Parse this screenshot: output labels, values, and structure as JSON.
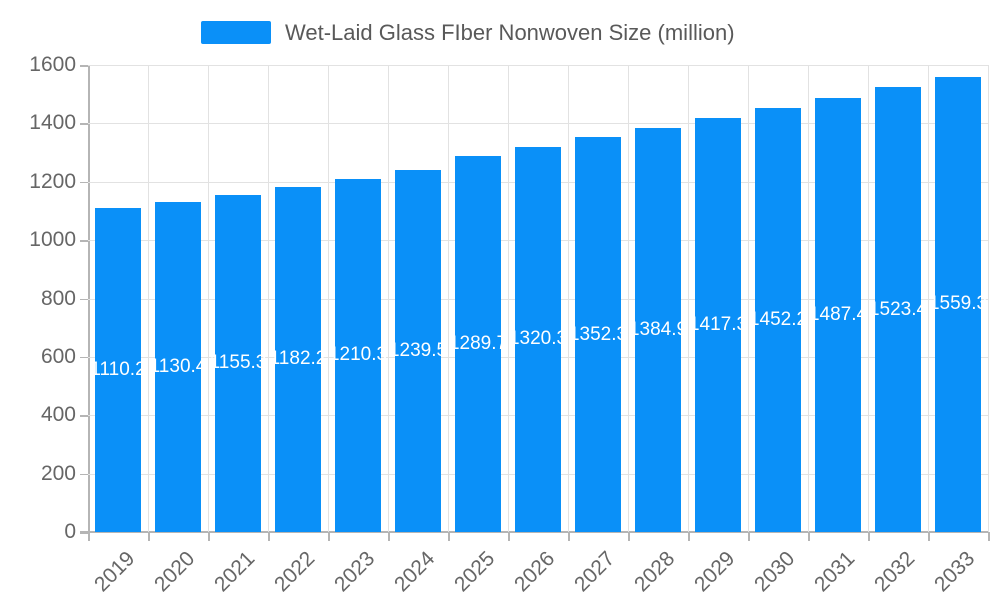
{
  "legend": {
    "label": "Wet-Laid Glass FIber Nonwoven Size (million)"
  },
  "colors": {
    "bar": "#0a90f8",
    "grid": "#e2e2e2",
    "axis": "#b5b5b5",
    "tick_text": "#666666",
    "legend_text": "#595959",
    "value_label": "#ffffff",
    "background": "#ffffff"
  },
  "chart_data": {
    "type": "bar",
    "title": "Wet-Laid Glass FIber Nonwoven Size (million)",
    "categories": [
      "2019",
      "2020",
      "2021",
      "2022",
      "2023",
      "2024",
      "2025",
      "2026",
      "2027",
      "2028",
      "2029",
      "2030",
      "2031",
      "2032",
      "2033"
    ],
    "values": [
      1110.2,
      1130.4,
      1155.3,
      1182.2,
      1210.3,
      1239.5,
      1289.7,
      1320.3,
      1352.3,
      1384.9,
      1417.3,
      1452.2,
      1487.4,
      1523.4,
      1559.3
    ],
    "xlabel": "",
    "ylabel": "",
    "ylim": [
      0,
      1600
    ],
    "ytick_step": 200,
    "yticks": [
      0,
      200,
      400,
      600,
      800,
      1000,
      1200,
      1400,
      1600
    ],
    "grid": true,
    "legend_position": "top-center",
    "value_label_position": "inside-center",
    "x_label_rotation_deg": 45
  }
}
